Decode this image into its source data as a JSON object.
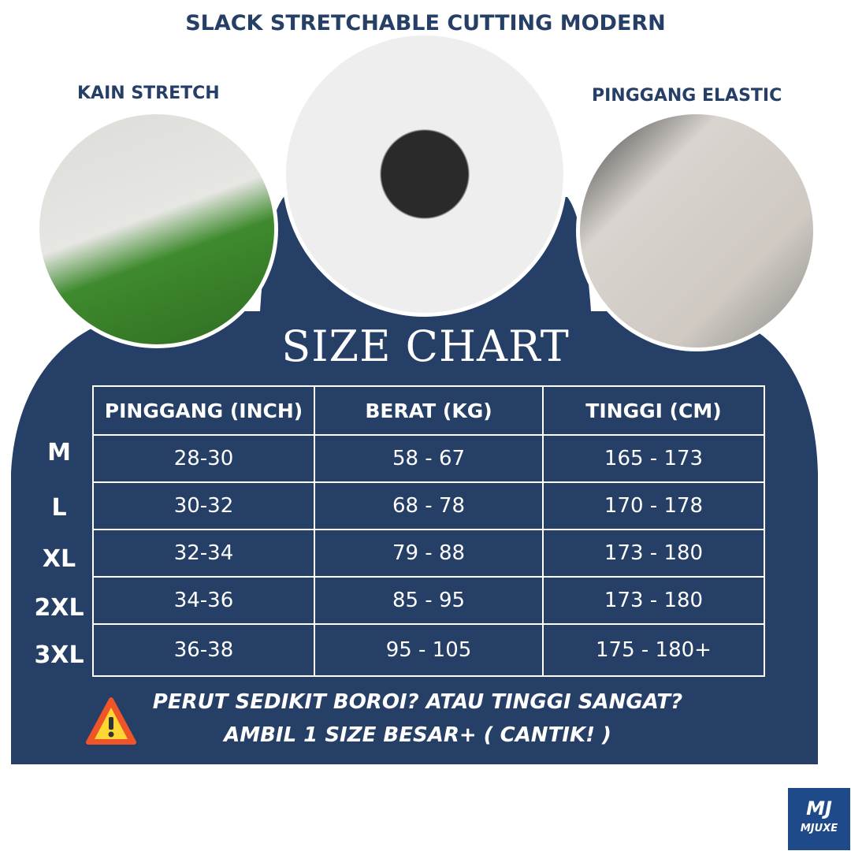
{
  "title": "SLACK STRETCHABLE CUTTING MODERN",
  "left_caption": "KAIN STRETCH",
  "right_caption": "PINGGANG ELASTIC",
  "heading": "SIZE CHART",
  "colors": {
    "navy": "#263f66",
    "warning": "#f0552a"
  },
  "table": {
    "headers": [
      "PINGGANG (INCH)",
      "BERAT (KG)",
      "TINGGI (CM)"
    ],
    "rows": [
      {
        "size": "M",
        "cells": [
          "28-30",
          "58 - 67",
          "165 - 173"
        ]
      },
      {
        "size": "L",
        "cells": [
          "30-32",
          "68 - 78",
          "170 - 178"
        ]
      },
      {
        "size": "XL",
        "cells": [
          "32-34",
          "79 - 88",
          "173 - 180"
        ]
      },
      {
        "size": "2XL",
        "cells": [
          "34-36",
          "85 - 95",
          "173 - 180"
        ]
      },
      {
        "size": "3XL",
        "cells": [
          "36-38",
          "95 - 105",
          "175 - 180+"
        ]
      }
    ]
  },
  "warning": {
    "icon": "warning-triangle-icon",
    "line1": "PERUT SEDIKIT BOROI? ATAU TINGGI SANGAT?",
    "line2": "AMBIL 1 SIZE BESAR+ ( CANTIK! )"
  },
  "logo": {
    "text": "MJUXE",
    "mark": "MJ"
  }
}
